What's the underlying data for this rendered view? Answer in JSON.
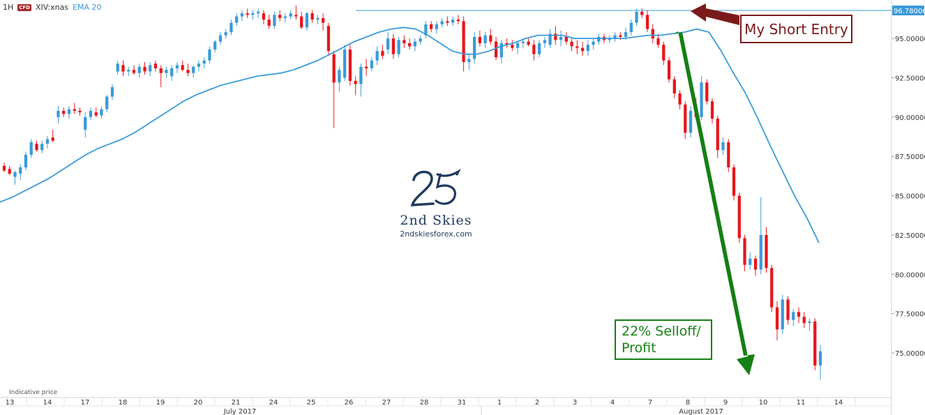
{
  "header": {
    "interval": "1H",
    "badge": "CFD",
    "symbol": "XIV:xnas",
    "indicator": "EMA 20"
  },
  "note": "Indicative price",
  "annotations": {
    "entry_label": "My Short Entry",
    "profit_label_line1": "22% Selloff/",
    "profit_label_line2": "Profit"
  },
  "logo": {
    "mark": "25",
    "name": "2nd Skies",
    "url": "2ndskiesforex.com"
  },
  "chart_data": {
    "type": "candlestick",
    "price_axis": {
      "ticks": [
        "95.00000",
        "92.50000",
        "90.00000",
        "87.50000",
        "85.00000",
        "82.50000",
        "80.00000",
        "77.50000",
        "75.00000"
      ],
      "tick_values": [
        95,
        92.5,
        90,
        87.5,
        85,
        82.5,
        80,
        77.5,
        75
      ],
      "current_price_label": "96.78006",
      "current_price": 96.78,
      "ylim": [
        72.6,
        97.4
      ]
    },
    "time_axis": {
      "day_labels": [
        "13",
        "14",
        "17",
        "18",
        "19",
        "20",
        "21",
        "24",
        "25",
        "26",
        "27",
        "28",
        "31",
        "1",
        "2",
        "3",
        "4",
        "7",
        "8",
        "9",
        "10",
        "11",
        "14"
      ],
      "month_labels": [
        "July 2017",
        "August 2017"
      ]
    },
    "colors": {
      "up": "#3a9ad9",
      "down": "#e8151b",
      "ema": "#3a9ad9",
      "entry": "#7b1a1a",
      "profit": "#158015"
    },
    "ema_20": [
      84.6,
      84.9,
      85.3,
      85.7,
      86.1,
      86.6,
      87.1,
      87.6,
      88.0,
      88.3,
      88.6,
      89.0,
      89.5,
      90.0,
      90.5,
      91.0,
      91.4,
      91.7,
      92.0,
      92.2,
      92.4,
      92.6,
      92.7,
      92.8,
      93.0,
      93.3,
      93.6,
      94.0,
      94.4,
      94.8,
      95.1,
      95.4,
      95.6,
      95.7,
      95.6,
      95.2,
      94.7,
      94.2,
      94.0,
      94.0,
      94.2,
      94.5,
      94.7,
      95.0,
      95.2,
      95.2,
      95.2,
      95.0,
      95.0,
      95.0,
      95.0,
      95.0,
      95.1,
      95.2,
      95.2,
      95.3,
      95.4,
      95.6,
      95.4,
      94.2,
      92.8,
      91.5,
      89.9,
      88.2,
      86.6,
      85.0,
      83.6,
      82.0
    ],
    "candles": [
      {
        "o": 86.9,
        "h": 87.1,
        "l": 86.5,
        "c": 86.6
      },
      {
        "o": 86.7,
        "h": 86.9,
        "l": 86.3,
        "c": 86.4
      },
      {
        "o": 86.2,
        "h": 86.6,
        "l": 85.7,
        "c": 86.5
      },
      {
        "o": 86.4,
        "h": 87.0,
        "l": 86.0,
        "c": 86.8
      },
      {
        "o": 86.8,
        "h": 87.8,
        "l": 86.6,
        "c": 87.6
      },
      {
        "o": 87.6,
        "h": 88.6,
        "l": 87.4,
        "c": 88.4
      },
      {
        "o": 88.3,
        "h": 88.5,
        "l": 87.8,
        "c": 87.9
      },
      {
        "o": 87.9,
        "h": 88.5,
        "l": 87.7,
        "c": 88.3
      },
      {
        "o": 88.3,
        "h": 88.8,
        "l": 88.0,
        "c": 88.6
      },
      {
        "o": 88.7,
        "h": 89.2,
        "l": 88.4,
        "c": 88.5
      },
      {
        "o": 90.0,
        "h": 90.7,
        "l": 89.6,
        "c": 90.4
      },
      {
        "o": 90.4,
        "h": 90.6,
        "l": 90.0,
        "c": 90.2
      },
      {
        "o": 90.2,
        "h": 90.7,
        "l": 89.9,
        "c": 90.5
      },
      {
        "o": 90.5,
        "h": 90.9,
        "l": 90.2,
        "c": 90.4
      },
      {
        "o": 90.4,
        "h": 90.6,
        "l": 90.1,
        "c": 90.3
      },
      {
        "o": 89.2,
        "h": 90.3,
        "l": 88.7,
        "c": 90.0
      },
      {
        "o": 90.0,
        "h": 90.6,
        "l": 89.8,
        "c": 90.4
      },
      {
        "o": 90.3,
        "h": 90.6,
        "l": 90.0,
        "c": 90.1
      },
      {
        "o": 90.1,
        "h": 90.7,
        "l": 89.9,
        "c": 90.5
      },
      {
        "o": 90.5,
        "h": 91.4,
        "l": 90.3,
        "c": 91.3
      },
      {
        "o": 91.3,
        "h": 92.1,
        "l": 91.1,
        "c": 91.9
      },
      {
        "o": 92.9,
        "h": 93.6,
        "l": 92.7,
        "c": 93.4
      },
      {
        "o": 93.3,
        "h": 93.6,
        "l": 92.6,
        "c": 92.9
      },
      {
        "o": 92.9,
        "h": 93.2,
        "l": 92.6,
        "c": 93.0
      },
      {
        "o": 93.0,
        "h": 93.3,
        "l": 92.7,
        "c": 92.8
      },
      {
        "o": 92.8,
        "h": 93.4,
        "l": 92.5,
        "c": 93.2
      },
      {
        "o": 93.2,
        "h": 93.5,
        "l": 92.7,
        "c": 92.9
      },
      {
        "o": 92.9,
        "h": 93.5,
        "l": 92.6,
        "c": 93.3
      },
      {
        "o": 93.4,
        "h": 93.6,
        "l": 92.9,
        "c": 93.1
      },
      {
        "o": 93.1,
        "h": 93.3,
        "l": 91.9,
        "c": 92.8
      },
      {
        "o": 92.8,
        "h": 93.2,
        "l": 92.5,
        "c": 93.0
      },
      {
        "o": 92.6,
        "h": 93.3,
        "l": 92.3,
        "c": 93.1
      },
      {
        "o": 93.1,
        "h": 93.5,
        "l": 92.8,
        "c": 93.3
      },
      {
        "o": 93.3,
        "h": 93.6,
        "l": 92.9,
        "c": 93.0
      },
      {
        "o": 93.0,
        "h": 93.4,
        "l": 92.6,
        "c": 92.8
      },
      {
        "o": 92.8,
        "h": 93.3,
        "l": 92.5,
        "c": 93.2
      },
      {
        "o": 93.2,
        "h": 93.6,
        "l": 92.9,
        "c": 93.4
      },
      {
        "o": 93.4,
        "h": 93.8,
        "l": 93.1,
        "c": 93.6
      },
      {
        "o": 93.6,
        "h": 94.5,
        "l": 93.4,
        "c": 94.3
      },
      {
        "o": 94.3,
        "h": 94.9,
        "l": 94.1,
        "c": 94.8
      },
      {
        "o": 94.8,
        "h": 95.4,
        "l": 94.6,
        "c": 95.2
      },
      {
        "o": 95.2,
        "h": 95.6,
        "l": 95.0,
        "c": 95.4
      },
      {
        "o": 95.4,
        "h": 96.2,
        "l": 95.2,
        "c": 96.0
      },
      {
        "o": 96.0,
        "h": 96.6,
        "l": 95.8,
        "c": 96.4
      },
      {
        "o": 96.4,
        "h": 96.8,
        "l": 96.1,
        "c": 96.6
      },
      {
        "o": 96.6,
        "h": 96.9,
        "l": 96.3,
        "c": 96.5
      },
      {
        "o": 96.5,
        "h": 96.8,
        "l": 96.2,
        "c": 96.6
      },
      {
        "o": 96.6,
        "h": 96.9,
        "l": 96.3,
        "c": 96.7
      },
      {
        "o": 96.6,
        "h": 96.8,
        "l": 95.9,
        "c": 96.2
      },
      {
        "o": 96.2,
        "h": 96.5,
        "l": 95.6,
        "c": 95.8
      },
      {
        "o": 95.8,
        "h": 96.7,
        "l": 95.6,
        "c": 96.5
      },
      {
        "o": 96.5,
        "h": 96.8,
        "l": 96.1,
        "c": 96.3
      },
      {
        "o": 96.3,
        "h": 96.6,
        "l": 96.0,
        "c": 96.4
      },
      {
        "o": 96.4,
        "h": 96.8,
        "l": 96.2,
        "c": 96.6
      },
      {
        "o": 96.5,
        "h": 97.1,
        "l": 96.2,
        "c": 96.4
      },
      {
        "o": 96.4,
        "h": 96.7,
        "l": 95.6,
        "c": 95.7
      },
      {
        "o": 95.7,
        "h": 96.7,
        "l": 95.5,
        "c": 96.6
      },
      {
        "o": 96.6,
        "h": 96.8,
        "l": 96.0,
        "c": 96.2
      },
      {
        "o": 96.2,
        "h": 96.5,
        "l": 95.9,
        "c": 96.3
      },
      {
        "o": 96.3,
        "h": 96.6,
        "l": 95.5,
        "c": 96.0
      },
      {
        "o": 95.8,
        "h": 96.0,
        "l": 93.9,
        "c": 94.2
      },
      {
        "o": 94.0,
        "h": 94.2,
        "l": 89.3,
        "c": 92.2
      },
      {
        "o": 92.2,
        "h": 93.2,
        "l": 91.6,
        "c": 93.0
      },
      {
        "o": 92.5,
        "h": 94.6,
        "l": 92.3,
        "c": 94.3
      },
      {
        "o": 94.3,
        "h": 94.6,
        "l": 92.0,
        "c": 92.3
      },
      {
        "o": 92.3,
        "h": 92.6,
        "l": 91.4,
        "c": 92.1
      },
      {
        "o": 92.1,
        "h": 93.4,
        "l": 91.3,
        "c": 93.2
      },
      {
        "o": 93.2,
        "h": 93.7,
        "l": 92.6,
        "c": 93.1
      },
      {
        "o": 93.1,
        "h": 93.8,
        "l": 92.9,
        "c": 93.6
      },
      {
        "o": 93.6,
        "h": 94.5,
        "l": 93.3,
        "c": 94.2
      },
      {
        "o": 94.2,
        "h": 94.6,
        "l": 93.7,
        "c": 93.9
      },
      {
        "o": 94.3,
        "h": 95.4,
        "l": 94.0,
        "c": 95.0
      },
      {
        "o": 95.0,
        "h": 95.3,
        "l": 93.7,
        "c": 94.0
      },
      {
        "o": 94.0,
        "h": 95.1,
        "l": 93.8,
        "c": 94.9
      },
      {
        "o": 94.9,
        "h": 95.2,
        "l": 94.4,
        "c": 94.7
      },
      {
        "o": 94.7,
        "h": 95.0,
        "l": 94.3,
        "c": 94.5
      },
      {
        "o": 94.5,
        "h": 95.0,
        "l": 94.2,
        "c": 94.8
      },
      {
        "o": 94.8,
        "h": 95.2,
        "l": 94.6,
        "c": 95.0
      },
      {
        "o": 95.2,
        "h": 96.1,
        "l": 95.0,
        "c": 95.9
      },
      {
        "o": 95.9,
        "h": 96.1,
        "l": 95.4,
        "c": 95.6
      },
      {
        "o": 95.6,
        "h": 96.1,
        "l": 95.3,
        "c": 95.9
      },
      {
        "o": 95.9,
        "h": 96.3,
        "l": 95.7,
        "c": 96.1
      },
      {
        "o": 96.1,
        "h": 96.4,
        "l": 95.8,
        "c": 96.0
      },
      {
        "o": 96.0,
        "h": 96.4,
        "l": 95.8,
        "c": 96.2
      },
      {
        "o": 96.2,
        "h": 96.5,
        "l": 95.9,
        "c": 96.1
      },
      {
        "o": 96.1,
        "h": 96.4,
        "l": 92.9,
        "c": 93.5
      },
      {
        "o": 93.5,
        "h": 94.0,
        "l": 93.0,
        "c": 93.7
      },
      {
        "o": 93.7,
        "h": 95.4,
        "l": 93.4,
        "c": 95.1
      },
      {
        "o": 95.1,
        "h": 95.5,
        "l": 94.5,
        "c": 94.7
      },
      {
        "o": 94.7,
        "h": 95.4,
        "l": 94.4,
        "c": 95.2
      },
      {
        "o": 95.2,
        "h": 95.6,
        "l": 94.6,
        "c": 94.8
      },
      {
        "o": 94.8,
        "h": 95.1,
        "l": 93.6,
        "c": 93.8
      },
      {
        "o": 93.8,
        "h": 94.9,
        "l": 93.4,
        "c": 94.7
      },
      {
        "o": 94.7,
        "h": 95.0,
        "l": 94.4,
        "c": 94.6
      },
      {
        "o": 94.6,
        "h": 94.9,
        "l": 94.2,
        "c": 94.4
      },
      {
        "o": 94.4,
        "h": 94.8,
        "l": 94.0,
        "c": 94.7
      },
      {
        "o": 94.7,
        "h": 95.0,
        "l": 94.4,
        "c": 94.8
      },
      {
        "o": 94.8,
        "h": 95.0,
        "l": 94.5,
        "c": 94.6
      },
      {
        "o": 94.6,
        "h": 94.9,
        "l": 93.6,
        "c": 94.0
      },
      {
        "o": 94.0,
        "h": 94.9,
        "l": 93.8,
        "c": 94.7
      },
      {
        "o": 94.7,
        "h": 95.1,
        "l": 94.4,
        "c": 94.9
      },
      {
        "o": 94.6,
        "h": 95.6,
        "l": 94.4,
        "c": 95.3
      },
      {
        "o": 95.3,
        "h": 95.8,
        "l": 94.6,
        "c": 94.9
      },
      {
        "o": 94.9,
        "h": 95.5,
        "l": 94.5,
        "c": 95.1
      },
      {
        "o": 95.1,
        "h": 95.4,
        "l": 94.6,
        "c": 94.8
      },
      {
        "o": 94.8,
        "h": 95.0,
        "l": 94.2,
        "c": 94.5
      },
      {
        "o": 94.5,
        "h": 94.9,
        "l": 94.0,
        "c": 94.4
      },
      {
        "o": 94.4,
        "h": 94.8,
        "l": 93.9,
        "c": 94.2
      },
      {
        "o": 94.2,
        "h": 94.9,
        "l": 93.9,
        "c": 94.6
      },
      {
        "o": 94.6,
        "h": 95.0,
        "l": 94.3,
        "c": 94.8
      },
      {
        "o": 94.8,
        "h": 95.3,
        "l": 94.6,
        "c": 95.1
      },
      {
        "o": 95.1,
        "h": 95.3,
        "l": 94.7,
        "c": 94.9
      },
      {
        "o": 94.9,
        "h": 95.2,
        "l": 94.7,
        "c": 95.0
      },
      {
        "o": 95.0,
        "h": 95.4,
        "l": 94.8,
        "c": 95.2
      },
      {
        "o": 95.2,
        "h": 95.4,
        "l": 94.9,
        "c": 95.1
      },
      {
        "o": 95.1,
        "h": 95.7,
        "l": 94.9,
        "c": 95.4
      },
      {
        "o": 95.4,
        "h": 96.2,
        "l": 95.2,
        "c": 96.0
      },
      {
        "o": 96.0,
        "h": 96.9,
        "l": 95.8,
        "c": 96.7
      },
      {
        "o": 96.7,
        "h": 96.9,
        "l": 96.3,
        "c": 96.5
      },
      {
        "o": 96.5,
        "h": 96.8,
        "l": 95.4,
        "c": 95.6
      },
      {
        "o": 95.6,
        "h": 95.9,
        "l": 94.7,
        "c": 95.0
      },
      {
        "o": 95.0,
        "h": 95.3,
        "l": 94.4,
        "c": 94.6
      },
      {
        "o": 94.6,
        "h": 94.8,
        "l": 93.3,
        "c": 93.6
      },
      {
        "o": 93.6,
        "h": 93.8,
        "l": 92.2,
        "c": 92.4
      },
      {
        "o": 92.4,
        "h": 92.6,
        "l": 91.2,
        "c": 91.5
      },
      {
        "o": 91.5,
        "h": 91.7,
        "l": 90.5,
        "c": 90.8
      },
      {
        "o": 90.8,
        "h": 91.0,
        "l": 88.6,
        "c": 89.0
      },
      {
        "o": 89.0,
        "h": 90.7,
        "l": 88.7,
        "c": 90.4
      },
      {
        "o": 90.4,
        "h": 91.2,
        "l": 89.8,
        "c": 90.0
      },
      {
        "o": 90.0,
        "h": 92.6,
        "l": 89.8,
        "c": 92.2
      },
      {
        "o": 92.2,
        "h": 92.4,
        "l": 90.8,
        "c": 91.0
      },
      {
        "o": 91.0,
        "h": 91.2,
        "l": 89.6,
        "c": 89.9
      },
      {
        "o": 89.9,
        "h": 90.1,
        "l": 87.4,
        "c": 87.9
      },
      {
        "o": 87.9,
        "h": 88.7,
        "l": 87.6,
        "c": 88.4
      },
      {
        "o": 88.4,
        "h": 88.6,
        "l": 86.5,
        "c": 86.8
      },
      {
        "o": 86.8,
        "h": 87.0,
        "l": 84.7,
        "c": 85.0
      },
      {
        "o": 85.0,
        "h": 85.2,
        "l": 82.0,
        "c": 82.3
      },
      {
        "o": 82.3,
        "h": 82.5,
        "l": 80.2,
        "c": 80.6
      },
      {
        "o": 80.6,
        "h": 81.4,
        "l": 80.3,
        "c": 81.0
      },
      {
        "o": 81.0,
        "h": 81.2,
        "l": 79.9,
        "c": 80.3
      },
      {
        "o": 80.3,
        "h": 84.9,
        "l": 80.0,
        "c": 82.5
      },
      {
        "o": 82.5,
        "h": 83.0,
        "l": 80.1,
        "c": 80.4
      },
      {
        "o": 80.4,
        "h": 80.6,
        "l": 77.6,
        "c": 77.9
      },
      {
        "o": 77.9,
        "h": 78.3,
        "l": 75.8,
        "c": 76.5
      },
      {
        "o": 76.5,
        "h": 78.7,
        "l": 76.2,
        "c": 78.4
      },
      {
        "o": 78.4,
        "h": 78.6,
        "l": 76.8,
        "c": 77.1
      },
      {
        "o": 77.1,
        "h": 77.8,
        "l": 76.7,
        "c": 77.6
      },
      {
        "o": 77.6,
        "h": 77.9,
        "l": 76.9,
        "c": 77.3
      },
      {
        "o": 77.3,
        "h": 77.6,
        "l": 76.6,
        "c": 76.9
      },
      {
        "o": 76.9,
        "h": 77.2,
        "l": 76.4,
        "c": 77.0
      },
      {
        "o": 77.0,
        "h": 77.2,
        "l": 73.9,
        "c": 74.2
      },
      {
        "o": 74.2,
        "h": 75.5,
        "l": 73.3,
        "c": 75.1
      }
    ]
  }
}
